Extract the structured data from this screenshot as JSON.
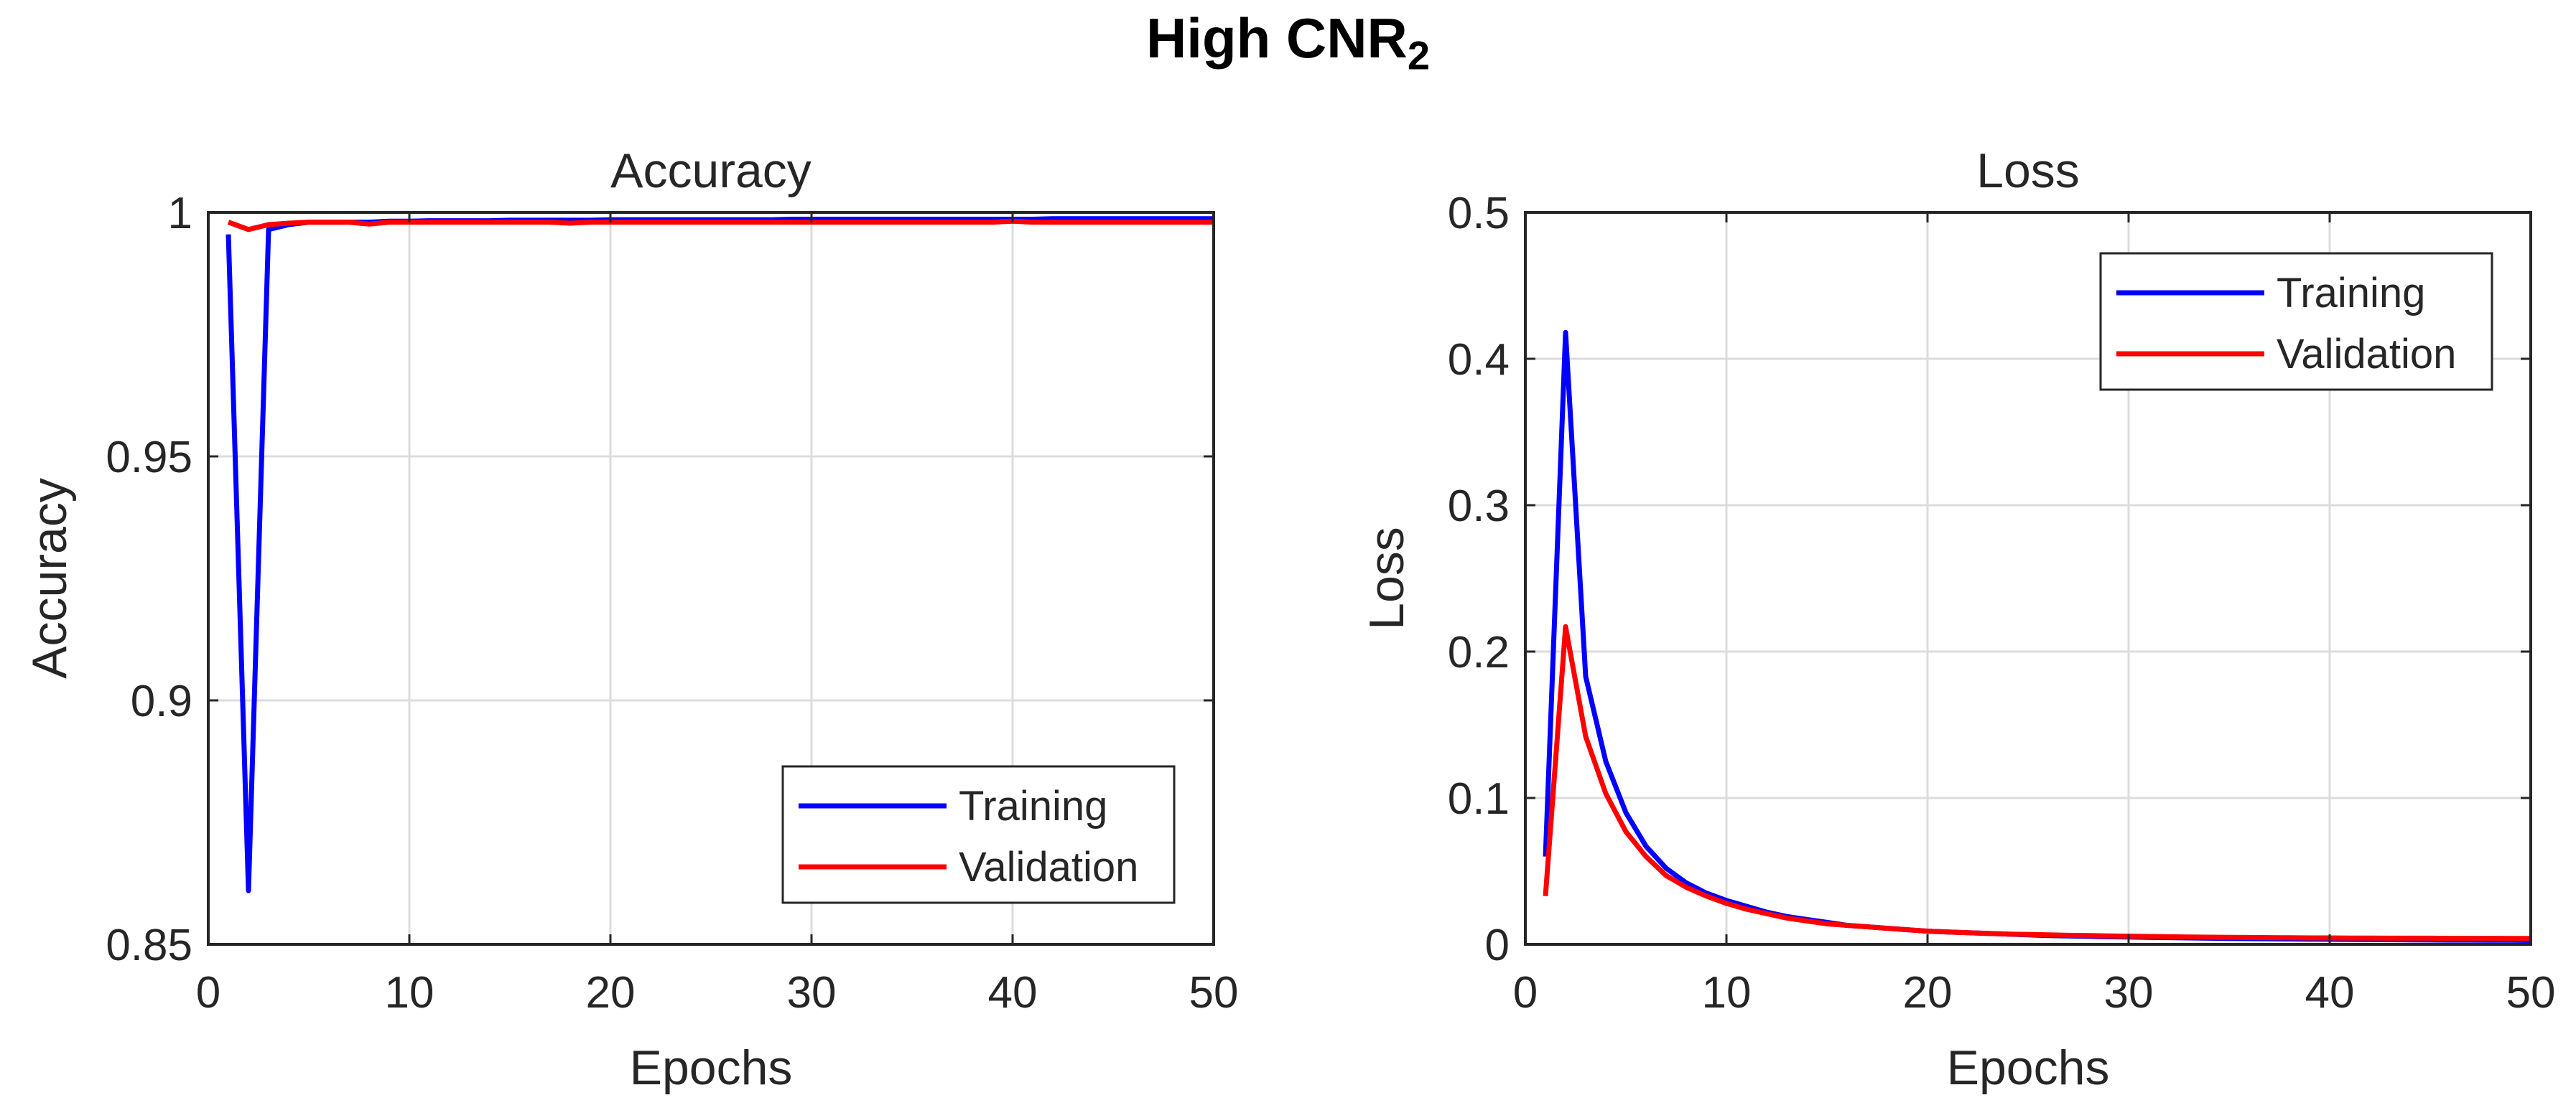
{
  "figure": {
    "title": "High CNR",
    "title_subscript": "2"
  },
  "chart_data": [
    {
      "type": "line",
      "title": "Accuracy",
      "xlabel": "Epochs",
      "ylabel": "Accuracy",
      "xlim": [
        0,
        50
      ],
      "ylim": [
        0.85,
        1
      ],
      "xticks": [
        0,
        10,
        20,
        30,
        40,
        50
      ],
      "yticks": [
        0.85,
        0.9,
        0.95,
        1
      ],
      "ytick_labels": [
        "0.85",
        "0.9",
        "0.95",
        "1"
      ],
      "grid": true,
      "legend_location": "bottom-right",
      "series": [
        {
          "name": "Training",
          "color": "#0000ff",
          "x": [
            1,
            2,
            3,
            4,
            5,
            6,
            7,
            8,
            9,
            10,
            11,
            12,
            13,
            14,
            15,
            16,
            17,
            18,
            19,
            20,
            21,
            22,
            23,
            24,
            25,
            26,
            27,
            28,
            29,
            30,
            31,
            32,
            33,
            34,
            35,
            36,
            37,
            38,
            39,
            40,
            41,
            42,
            43,
            44,
            45,
            46,
            47,
            48,
            49,
            50
          ],
          "y": [
            0.9955,
            0.861,
            0.9965,
            0.9975,
            0.998,
            0.998,
            0.998,
            0.998,
            0.9982,
            0.9982,
            0.9983,
            0.9983,
            0.9983,
            0.9983,
            0.9984,
            0.9984,
            0.9984,
            0.9984,
            0.9984,
            0.9985,
            0.9985,
            0.9985,
            0.9985,
            0.9985,
            0.9985,
            0.9985,
            0.9985,
            0.9985,
            0.9986,
            0.9986,
            0.9986,
            0.9986,
            0.9986,
            0.9986,
            0.9986,
            0.9986,
            0.9986,
            0.9986,
            0.9986,
            0.9986,
            0.9986,
            0.9987,
            0.9987,
            0.9987,
            0.9987,
            0.9987,
            0.9987,
            0.9987,
            0.9987,
            0.9987
          ]
        },
        {
          "name": "Validation",
          "color": "#ff0000",
          "x": [
            1,
            2,
            3,
            4,
            5,
            6,
            7,
            8,
            9,
            10,
            11,
            12,
            13,
            14,
            15,
            16,
            17,
            18,
            19,
            20,
            21,
            22,
            23,
            24,
            25,
            26,
            27,
            28,
            29,
            30,
            31,
            32,
            33,
            34,
            35,
            36,
            37,
            38,
            39,
            40,
            41,
            42,
            43,
            44,
            45,
            46,
            47,
            48,
            49,
            50
          ],
          "y": [
            0.998,
            0.9965,
            0.9975,
            0.9978,
            0.998,
            0.998,
            0.998,
            0.9976,
            0.998,
            0.998,
            0.998,
            0.998,
            0.998,
            0.998,
            0.998,
            0.998,
            0.998,
            0.9978,
            0.998,
            0.998,
            0.998,
            0.998,
            0.998,
            0.998,
            0.998,
            0.998,
            0.998,
            0.998,
            0.998,
            0.998,
            0.998,
            0.998,
            0.998,
            0.998,
            0.998,
            0.998,
            0.998,
            0.998,
            0.998,
            0.9982,
            0.998,
            0.998,
            0.998,
            0.998,
            0.998,
            0.998,
            0.998,
            0.998,
            0.998,
            0.998
          ]
        }
      ]
    },
    {
      "type": "line",
      "title": "Loss",
      "xlabel": "Epochs",
      "ylabel": "Loss",
      "xlim": [
        0,
        50
      ],
      "ylim": [
        0,
        0.5
      ],
      "xticks": [
        0,
        10,
        20,
        30,
        40,
        50
      ],
      "yticks": [
        0,
        0.1,
        0.2,
        0.3,
        0.4,
        0.5
      ],
      "ytick_labels": [
        "0",
        "0.1",
        "0.2",
        "0.3",
        "0.4",
        "0.5"
      ],
      "grid": true,
      "legend_location": "top-right",
      "series": [
        {
          "name": "Training",
          "color": "#0000ff",
          "x": [
            1,
            2,
            3,
            4,
            5,
            6,
            7,
            8,
            9,
            10,
            11,
            12,
            13,
            14,
            15,
            16,
            17,
            18,
            19,
            20,
            21,
            22,
            23,
            24,
            25,
            26,
            27,
            28,
            29,
            30,
            31,
            32,
            33,
            34,
            35,
            36,
            37,
            38,
            39,
            40,
            41,
            42,
            43,
            44,
            45,
            46,
            47,
            48,
            49,
            50
          ],
          "y": [
            0.06,
            0.418,
            0.183,
            0.125,
            0.09,
            0.067,
            0.052,
            0.042,
            0.035,
            0.03,
            0.026,
            0.022,
            0.019,
            0.017,
            0.015,
            0.013,
            0.012,
            0.011,
            0.01,
            0.009,
            0.0085,
            0.008,
            0.0075,
            0.007,
            0.0065,
            0.006,
            0.0058,
            0.0055,
            0.0052,
            0.005,
            0.0048,
            0.0046,
            0.0044,
            0.0042,
            0.004,
            0.0039,
            0.0038,
            0.0037,
            0.0036,
            0.0035,
            0.0034,
            0.0033,
            0.0032,
            0.0031,
            0.003,
            0.0029,
            0.0029,
            0.0028,
            0.0028,
            0.0027
          ]
        },
        {
          "name": "Validation",
          "color": "#ff0000",
          "x": [
            1,
            2,
            3,
            4,
            5,
            6,
            7,
            8,
            9,
            10,
            11,
            12,
            13,
            14,
            15,
            16,
            17,
            18,
            19,
            20,
            21,
            22,
            23,
            24,
            25,
            26,
            27,
            28,
            29,
            30,
            31,
            32,
            33,
            34,
            35,
            36,
            37,
            38,
            39,
            40,
            41,
            42,
            43,
            44,
            45,
            46,
            47,
            48,
            49,
            50
          ],
          "y": [
            0.033,
            0.217,
            0.142,
            0.103,
            0.077,
            0.06,
            0.047,
            0.039,
            0.033,
            0.028,
            0.024,
            0.021,
            0.018,
            0.016,
            0.014,
            0.013,
            0.012,
            0.011,
            0.01,
            0.009,
            0.0085,
            0.008,
            0.0075,
            0.007,
            0.0068,
            0.0065,
            0.0062,
            0.006,
            0.0058,
            0.0056,
            0.0054,
            0.0052,
            0.005,
            0.0049,
            0.0048,
            0.0047,
            0.0046,
            0.0045,
            0.0044,
            0.0044,
            0.0043,
            0.0043,
            0.0042,
            0.0042,
            0.0042,
            0.0041,
            0.0041,
            0.0041,
            0.004,
            0.004
          ]
        }
      ]
    }
  ]
}
